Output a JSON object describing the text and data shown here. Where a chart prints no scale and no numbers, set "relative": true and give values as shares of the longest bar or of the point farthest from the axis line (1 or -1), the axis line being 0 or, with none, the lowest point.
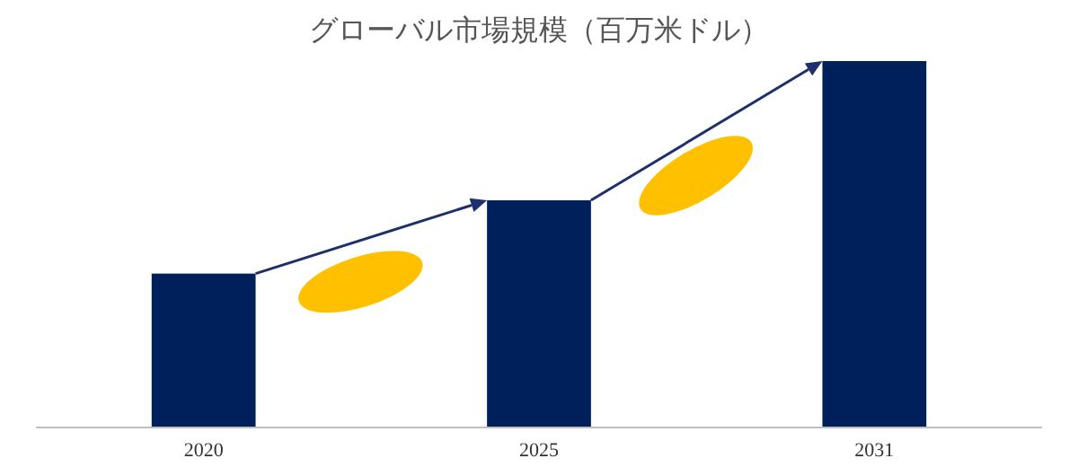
{
  "chart_data": {
    "type": "bar",
    "title": "グローバル市場規模（百万米ドル）",
    "relative": true,
    "categories": [
      "2020",
      "2025",
      "2031"
    ],
    "values": [
      0.42,
      0.62,
      1
    ],
    "color": "#00205b"
  }
}
